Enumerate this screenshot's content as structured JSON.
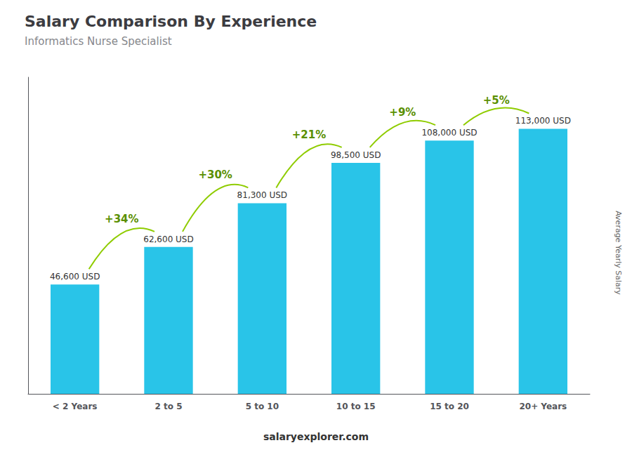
{
  "chart_data": {
    "type": "bar",
    "title": "Salary Comparison By Experience",
    "subtitle": "Informatics Nurse Specialist",
    "ylabel": "Average Yearly Salary",
    "footer": "salaryexplorer.com",
    "categories": [
      "< 2 Years",
      "2 to 5",
      "5 to 10",
      "10 to 15",
      "15 to 20",
      "20+ Years"
    ],
    "values": [
      46600,
      62600,
      81300,
      98500,
      108000,
      113000
    ],
    "value_labels": [
      "46,600 USD",
      "62,600 USD",
      "81,300 USD",
      "98,500 USD",
      "108,000 USD",
      "113,000 USD"
    ],
    "annotations": [
      "+34%",
      "+30%",
      "+21%",
      "+9%",
      "+5%"
    ],
    "color": "#29c4e8",
    "data_labels": true,
    "ylim": [
      0,
      135000
    ],
    "grid": false,
    "tick_labels": "x"
  }
}
